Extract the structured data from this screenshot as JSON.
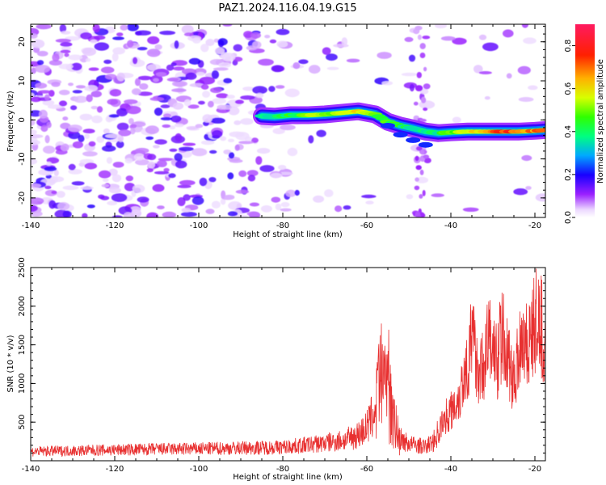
{
  "figure": {
    "title": "PAZ1.2024.116.04.19.G15"
  },
  "chart_data": [
    {
      "type": "heatmap",
      "xlabel": "Height of straight line (km)",
      "ylabel": "Frequency (Hz)",
      "xlim": [
        -140,
        -17.5
      ],
      "ylim": [
        -25,
        24.5
      ],
      "xticks": [
        -140,
        -120,
        -100,
        -80,
        -60,
        -40,
        -20
      ],
      "yticks": [
        -20,
        -10,
        0,
        10,
        20
      ],
      "colorbar": {
        "label": "Normalized spectral amplitude",
        "range": [
          0.0,
          0.9
        ],
        "ticks": [
          0.0,
          0.2,
          0.4,
          0.6,
          0.8
        ],
        "colormap": "gist_rainbow"
      },
      "ridge": {
        "name": "signal",
        "points": [
          {
            "x": -85,
            "y": 1.0,
            "amp": 0.3
          },
          {
            "x": -82,
            "y": 0.8,
            "amp": 0.35
          },
          {
            "x": -78,
            "y": 1.2,
            "amp": 0.45
          },
          {
            "x": -74,
            "y": 1.2,
            "amp": 0.5
          },
          {
            "x": -70,
            "y": 1.4,
            "amp": 0.5
          },
          {
            "x": -66,
            "y": 1.8,
            "amp": 0.55
          },
          {
            "x": -62,
            "y": 2.2,
            "amp": 0.55
          },
          {
            "x": -58,
            "y": 1.4,
            "amp": 0.5
          },
          {
            "x": -55,
            "y": -0.5,
            "amp": 0.45
          },
          {
            "x": -52,
            "y": -1.5,
            "amp": 0.4
          },
          {
            "x": -49,
            "y": -2.2,
            "amp": 0.35
          },
          {
            "x": -46,
            "y": -3.0,
            "amp": 0.35
          },
          {
            "x": -43,
            "y": -3.4,
            "amp": 0.4
          },
          {
            "x": -40,
            "y": -3.2,
            "amp": 0.5
          },
          {
            "x": -36,
            "y": -3.0,
            "amp": 0.6
          },
          {
            "x": -32,
            "y": -3.0,
            "amp": 0.65
          },
          {
            "x": -28,
            "y": -3.0,
            "amp": 0.7
          },
          {
            "x": -24,
            "y": -3.0,
            "amp": 0.7
          },
          {
            "x": -20,
            "y": -2.8,
            "amp": 0.7
          },
          {
            "x": -17.5,
            "y": -2.6,
            "amp": 0.75
          }
        ]
      }
    },
    {
      "type": "line",
      "xlabel": "Height of straight line (km)",
      "ylabel": "SNR (10 * v/v)",
      "xlim": [
        -140,
        -17.5
      ],
      "ylim": [
        0,
        2500
      ],
      "xticks": [
        -140,
        -120,
        -100,
        -80,
        -60,
        -40,
        -20
      ],
      "yticks": [
        500,
        1000,
        1500,
        2000,
        2500
      ],
      "color": "#e83030",
      "series": [
        {
          "x": [
            -140,
            -130,
            -120,
            -110,
            -100,
            -90,
            -80,
            -75,
            -70,
            -65,
            -62,
            -60,
            -58,
            -57,
            -56,
            -55,
            -54,
            -53,
            -52,
            -50,
            -48,
            -46,
            -44,
            -42,
            -41,
            -40,
            -38,
            -36,
            -35,
            -34,
            -33,
            -32,
            -31,
            -30,
            -29,
            -28,
            -27,
            -26,
            -25,
            -24,
            -23,
            -22,
            -21,
            -20,
            -19,
            -18,
            -17.5
          ],
          "values": [
            120,
            130,
            140,
            150,
            155,
            165,
            175,
            200,
            230,
            270,
            340,
            430,
            650,
            1050,
            1200,
            1150,
            900,
            450,
            280,
            220,
            200,
            180,
            260,
            480,
            650,
            700,
            900,
            1400,
            1650,
            1500,
            1200,
            1450,
            1700,
            1550,
            1400,
            1750,
            1600,
            1300,
            1100,
            1500,
            1800,
            1650,
            1700,
            1900,
            1950,
            1750,
            1700
          ]
        }
      ]
    }
  ]
}
